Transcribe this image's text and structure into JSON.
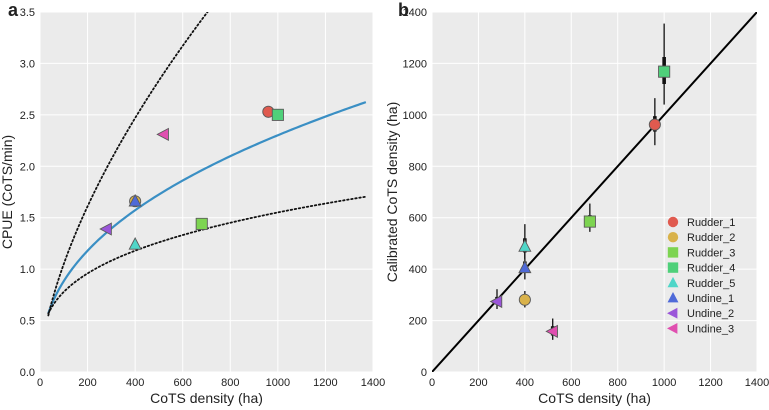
{
  "chart_data": [
    {
      "type": "scatter",
      "panel_label": "a",
      "xlabel": "CoTS density (ha)",
      "ylabel": "CPUE (CoTS/min)",
      "xlim": [
        0,
        1400
      ],
      "ylim": [
        0,
        3.5
      ],
      "xticks": [
        "0",
        "200",
        "400",
        "600",
        "800",
        "1000",
        "1200",
        "1400"
      ],
      "yticks": [
        "0.0",
        "0.5",
        "1.0",
        "1.5",
        "2.0",
        "2.5",
        "3.0",
        "3.5"
      ],
      "background": "#ebebeb",
      "grid": true,
      "points": [
        {
          "series": "Rudder_1",
          "x": 960,
          "y": 2.53,
          "shape": "circle",
          "color": "#e05a4f"
        },
        {
          "series": "Rudder_2",
          "x": 400,
          "y": 1.66,
          "shape": "circle",
          "color": "#d9b24a"
        },
        {
          "series": "Rudder_3",
          "x": 680,
          "y": 1.44,
          "shape": "square",
          "color": "#7dd451"
        },
        {
          "series": "Rudder_4",
          "x": 1000,
          "y": 2.5,
          "shape": "square",
          "color": "#4fd07a"
        },
        {
          "series": "Rudder_5",
          "x": 400,
          "y": 1.24,
          "shape": "triangle-up",
          "color": "#4fd6c8"
        },
        {
          "series": "Undine_1",
          "x": 400,
          "y": 1.66,
          "shape": "triangle-up",
          "color": "#4f6ad8"
        },
        {
          "series": "Undine_2",
          "x": 280,
          "y": 1.39,
          "shape": "triangle-left",
          "color": "#9a55d9"
        },
        {
          "series": "Undine_3",
          "x": 520,
          "y": 2.31,
          "shape": "triangle-left",
          "color": "#e04fb0"
        }
      ],
      "curves": [
        {
          "name": "fit",
          "style": "solid",
          "color": "#3a8fc4",
          "function": "power",
          "a": 0.1304,
          "b": 0.4156,
          "x_range": [
            35,
            1370
          ]
        },
        {
          "name": "upper",
          "style": "dotted",
          "color": "#111111",
          "function": "power",
          "a": 0.0614,
          "b": 0.6166,
          "x_range": [
            35,
            730
          ]
        },
        {
          "name": "lower",
          "style": "dotted",
          "color": "#111111",
          "function": "power",
          "a": 0.1965,
          "b": 0.2991,
          "x_range": [
            35,
            1370
          ]
        }
      ]
    },
    {
      "type": "scatter",
      "panel_label": "b",
      "xlabel": "CoTS density (ha)",
      "ylabel": "Calibrated CoTS density (ha)",
      "xlim": [
        0,
        1400
      ],
      "ylim": [
        0,
        1400
      ],
      "xticks": [
        "0",
        "200",
        "400",
        "600",
        "800",
        "1000",
        "1200",
        "1400"
      ],
      "yticks": [
        "0",
        "200",
        "400",
        "600",
        "800",
        "1000",
        "1200",
        "1400"
      ],
      "background": "#ebebeb",
      "grid": true,
      "identity_line": {
        "x": [
          0,
          1400
        ],
        "y": [
          0,
          1400
        ],
        "color": "#000000"
      },
      "points": [
        {
          "series": "Rudder_1",
          "x": 960,
          "y": 962,
          "err_low": 882,
          "err_high": 1065,
          "thick_low": 935,
          "thick_high": 995,
          "shape": "circle",
          "color": "#e05a4f"
        },
        {
          "series": "Rudder_2",
          "x": 400,
          "y": 281,
          "err_low": 251,
          "err_high": 315,
          "thick_low": 268,
          "thick_high": 296,
          "shape": "circle",
          "color": "#d9b24a"
        },
        {
          "series": "Rudder_3",
          "x": 680,
          "y": 585,
          "err_low": 545,
          "err_high": 655,
          "thick_low": 565,
          "thick_high": 610,
          "shape": "square",
          "color": "#7dd451"
        },
        {
          "series": "Rudder_4",
          "x": 1000,
          "y": 1168,
          "err_low": 1040,
          "err_high": 1355,
          "thick_low": 1120,
          "thick_high": 1225,
          "shape": "square",
          "color": "#4fd07a"
        },
        {
          "series": "Rudder_5",
          "x": 400,
          "y": 488,
          "err_low": 440,
          "err_high": 575,
          "thick_low": 465,
          "thick_high": 520,
          "shape": "triangle-up",
          "color": "#4fd6c8"
        },
        {
          "series": "Undine_1",
          "x": 400,
          "y": 405,
          "err_low": 360,
          "err_high": 470,
          "thick_low": 385,
          "thick_high": 430,
          "shape": "triangle-up",
          "color": "#4f6ad8"
        },
        {
          "series": "Undine_2",
          "x": 280,
          "y": 274,
          "err_low": 245,
          "err_high": 322,
          "thick_low": 262,
          "thick_high": 292,
          "shape": "triangle-left",
          "color": "#9a55d9"
        },
        {
          "series": "Undine_3",
          "x": 520,
          "y": 158,
          "err_low": 125,
          "err_high": 208,
          "thick_low": 142,
          "thick_high": 178,
          "shape": "triangle-left",
          "color": "#e04fb0"
        }
      ],
      "legend": {
        "placement": "lower-right",
        "entries": [
          {
            "label": "Rudder_1",
            "shape": "circle",
            "color": "#e05a4f"
          },
          {
            "label": "Rudder_2",
            "shape": "circle",
            "color": "#d9b24a"
          },
          {
            "label": "Rudder_3",
            "shape": "square",
            "color": "#7dd451"
          },
          {
            "label": "Rudder_4",
            "shape": "square",
            "color": "#4fd07a"
          },
          {
            "label": "Rudder_5",
            "shape": "triangle-up",
            "color": "#4fd6c8"
          },
          {
            "label": "Undine_1",
            "shape": "triangle-up",
            "color": "#4f6ad8"
          },
          {
            "label": "Undine_2",
            "shape": "triangle-left",
            "color": "#9a55d9"
          },
          {
            "label": "Undine_3",
            "shape": "triangle-left",
            "color": "#e04fb0"
          }
        ]
      }
    }
  ]
}
